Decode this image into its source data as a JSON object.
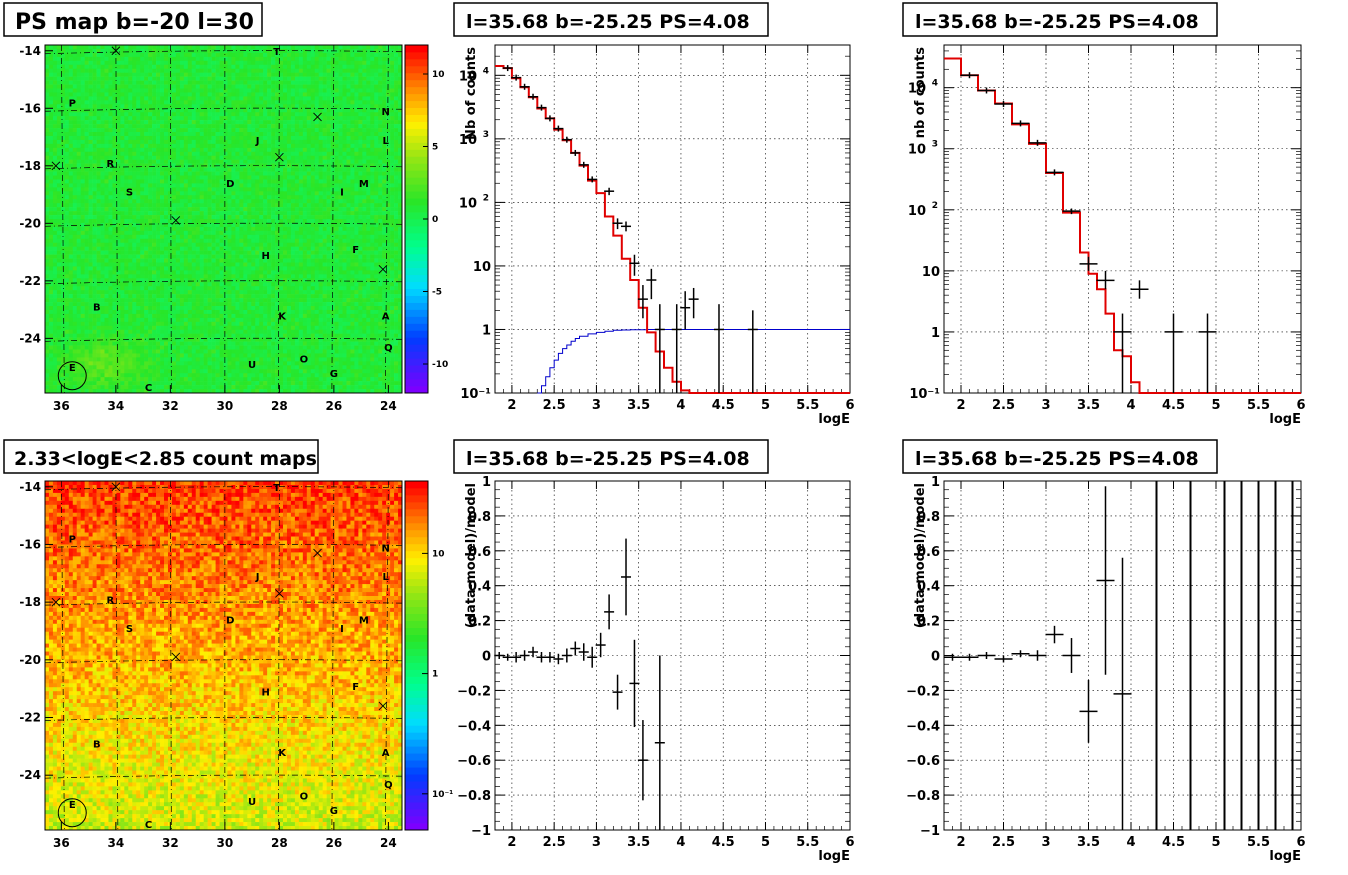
{
  "panels": {
    "map1": {
      "title": "PS map b=-20 l=30",
      "x_ticks": [
        "36",
        "34",
        "32",
        "30",
        "28",
        "26",
        "24"
      ],
      "y_ticks": [
        "-14",
        "-16",
        "-18",
        "-20",
        "-22",
        "-24"
      ],
      "colorbar_ticks": [
        "10",
        "5",
        "0",
        "-5",
        "-10"
      ],
      "palette": "rainbow, green field"
    },
    "map2": {
      "title": "2.33<logE<2.85 count maps",
      "x_ticks": [
        "36",
        "34",
        "32",
        "30",
        "28",
        "26",
        "24"
      ],
      "y_ticks": [
        "-14",
        "-16",
        "-18",
        "-20",
        "-22",
        "-24"
      ],
      "colorbar_ticks": [
        "10",
        "1",
        "10⁻¹"
      ],
      "palette": "rainbow log, orange-red field"
    },
    "map_labels": [
      {
        "t": "T",
        "l": 28.1,
        "b": -14.0
      },
      {
        "t": "P",
        "l": 35.6,
        "b": -15.8
      },
      {
        "t": "N",
        "l": 24.1,
        "b": -16.1
      },
      {
        "t": "J",
        "l": 28.8,
        "b": -17.1
      },
      {
        "t": "L",
        "l": 24.1,
        "b": -17.1
      },
      {
        "t": "R",
        "l": 34.2,
        "b": -17.9
      },
      {
        "t": "S",
        "l": 33.5,
        "b": -18.9
      },
      {
        "t": "D",
        "l": 29.8,
        "b": -18.6
      },
      {
        "t": "M",
        "l": 24.9,
        "b": -18.6
      },
      {
        "t": "I",
        "l": 25.7,
        "b": -18.9
      },
      {
        "t": "H",
        "l": 28.5,
        "b": -21.1
      },
      {
        "t": "F",
        "l": 25.2,
        "b": -20.9
      },
      {
        "t": "B",
        "l": 34.7,
        "b": -22.9
      },
      {
        "t": "K",
        "l": 27.9,
        "b": -23.2
      },
      {
        "t": "A",
        "l": 24.1,
        "b": -23.2
      },
      {
        "t": "Q",
        "l": 24.0,
        "b": -24.3
      },
      {
        "t": "O",
        "l": 27.1,
        "b": -24.7
      },
      {
        "t": "U",
        "l": 29.0,
        "b": -24.9
      },
      {
        "t": "G",
        "l": 26.0,
        "b": -25.2
      },
      {
        "t": "E",
        "l": 35.6,
        "b": -25.0
      },
      {
        "t": "C",
        "l": 32.8,
        "b": -25.7
      }
    ],
    "map_crosses": [
      {
        "l": 34.0,
        "b": -14.0
      },
      {
        "l": 26.6,
        "b": -16.3
      },
      {
        "l": 28.0,
        "b": -17.7
      },
      {
        "l": 31.8,
        "b": -19.9
      },
      {
        "l": 24.2,
        "b": -21.6
      },
      {
        "l": 36.2,
        "b": -18.0
      }
    ],
    "circle": {
      "l": 35.6,
      "b": -25.3
    },
    "spec1": {
      "title": "l=35.68 b=-25.25 PS=4.08",
      "xlabel": "logE",
      "ylabel": "Nb of counts"
    },
    "spec2": {
      "title": "l=35.68 b=-25.25 PS=4.08",
      "xlabel": "logE",
      "ylabel": "nb of counts"
    },
    "res1": {
      "title": "l=35.68 b=-25.25 PS=4.08",
      "xlabel": "logE",
      "ylabel": "(data-model)/model"
    },
    "res2": {
      "title": "l=35.68 b=-25.25 PS=4.08",
      "xlabel": "logE",
      "ylabel": "(data-model)/model"
    }
  },
  "chart_data": [
    {
      "type": "heatmap",
      "title": "PS map b=-20 l=30",
      "xlim": [
        36.6,
        23.5
      ],
      "ylim": [
        -25.9,
        -13.8
      ],
      "z_range": [
        -12,
        12
      ],
      "note_values": "smooth field near 0 (green), slight positive blobs"
    },
    {
      "type": "line",
      "title": "l=35.68 b=-25.25 PS=4.08",
      "xlabel": "logE",
      "ylabel": "Nb of counts",
      "xlim": [
        1.8,
        6
      ],
      "ylim": [
        0.1,
        30000
      ],
      "yscale": "log",
      "model_step": {
        "edges": [
          1.8,
          1.9,
          2.0,
          2.1,
          2.2,
          2.3,
          2.4,
          2.5,
          2.6,
          2.7,
          2.8,
          2.9,
          3.0,
          3.1,
          3.2,
          3.3,
          3.4,
          3.5,
          3.6,
          3.7,
          3.8,
          3.9,
          4.0,
          4.1,
          4.2,
          4.3,
          4.4,
          4.5,
          6.0
        ],
        "values": [
          14000,
          13000,
          9000,
          6500,
          4500,
          3000,
          2100,
          1400,
          950,
          600,
          380,
          220,
          140,
          60,
          30,
          13,
          6,
          2.2,
          0.9,
          0.45,
          0.25,
          0.15,
          0.11,
          0.1,
          0.1,
          0.1,
          0.1,
          0.1
        ]
      },
      "data_points": [
        {
          "x": 1.95,
          "y": 13000
        },
        {
          "x": 2.05,
          "y": 9200
        },
        {
          "x": 2.15,
          "y": 6600
        },
        {
          "x": 2.25,
          "y": 4600
        },
        {
          "x": 2.35,
          "y": 3100
        },
        {
          "x": 2.45,
          "y": 2100
        },
        {
          "x": 2.55,
          "y": 1450
        },
        {
          "x": 2.65,
          "y": 970
        },
        {
          "x": 2.75,
          "y": 600
        },
        {
          "x": 2.85,
          "y": 390
        },
        {
          "x": 2.95,
          "y": 230
        },
        {
          "x": 3.15,
          "y": 150,
          "lo": 130,
          "hi": 170
        },
        {
          "x": 3.25,
          "y": 47,
          "lo": 38,
          "hi": 56
        },
        {
          "x": 3.35,
          "y": 42,
          "lo": 35,
          "hi": 50
        },
        {
          "x": 3.45,
          "y": 11,
          "lo": 7,
          "hi": 15
        },
        {
          "x": 3.55,
          "y": 3,
          "lo": 1.5,
          "hi": 5
        },
        {
          "x": 3.65,
          "y": 6,
          "lo": 3,
          "hi": 9
        },
        {
          "x": 3.75,
          "y": 1,
          "lo": 0.1,
          "hi": 2.5
        },
        {
          "x": 3.95,
          "y": 1,
          "lo": 0.1,
          "hi": 2.5
        },
        {
          "x": 4.05,
          "y": 2.2,
          "lo": 1,
          "hi": 4
        },
        {
          "x": 4.15,
          "y": 3,
          "lo": 1.5,
          "hi": 4.5
        },
        {
          "x": 4.45,
          "y": 1,
          "lo": 0.1,
          "hi": 2.5
        },
        {
          "x": 4.85,
          "y": 1,
          "lo": 0.1,
          "hi": 2
        }
      ],
      "blue_curve": {
        "x": [
          2.3,
          2.35,
          2.4,
          2.45,
          2.5,
          2.55,
          2.6,
          2.65,
          2.7,
          2.75,
          2.8,
          2.9,
          3.0,
          3.1,
          3.2,
          3.3,
          3.4,
          3.6,
          4.0,
          6.0
        ],
        "y": [
          0.1,
          0.13,
          0.18,
          0.25,
          0.33,
          0.42,
          0.5,
          0.57,
          0.65,
          0.72,
          0.78,
          0.85,
          0.9,
          0.94,
          0.97,
          0.98,
          0.99,
          1,
          1,
          1
        ]
      }
    },
    {
      "type": "line",
      "title": "l=35.68 b=-25.25 PS=4.08",
      "xlabel": "logE",
      "ylabel": "nb of counts",
      "xlim": [
        1.8,
        6
      ],
      "ylim": [
        0.1,
        50000
      ],
      "yscale": "log",
      "model_step": {
        "edges": [
          1.8,
          2.0,
          2.2,
          2.4,
          2.6,
          2.8,
          3.0,
          3.2,
          3.4,
          3.5,
          3.6,
          3.7,
          3.8,
          3.9,
          4.0,
          4.1,
          4.2,
          4.3,
          6.0
        ],
        "values": [
          30000,
          16000,
          9000,
          5500,
          2500,
          1200,
          400,
          90,
          20,
          9,
          5,
          2,
          0.5,
          0.4,
          0.15,
          0.1,
          0.1,
          0.1
        ]
      },
      "data_points": [
        {
          "x": 2.1,
          "y": 16000
        },
        {
          "x": 2.3,
          "y": 9000
        },
        {
          "x": 2.5,
          "y": 5400
        },
        {
          "x": 2.7,
          "y": 2600
        },
        {
          "x": 2.9,
          "y": 1250
        },
        {
          "x": 3.1,
          "y": 410
        },
        {
          "x": 3.3,
          "y": 95,
          "lo": 85,
          "hi": 105
        },
        {
          "x": 3.5,
          "y": 13,
          "lo": 10,
          "hi": 17
        },
        {
          "x": 3.7,
          "y": 7,
          "lo": 5,
          "hi": 10
        },
        {
          "x": 3.9,
          "y": 1,
          "lo": 0.1,
          "hi": 2
        },
        {
          "x": 4.1,
          "y": 5,
          "lo": 3.5,
          "hi": 7
        },
        {
          "x": 4.5,
          "y": 1,
          "lo": 0.1,
          "hi": 2
        },
        {
          "x": 4.9,
          "y": 1,
          "lo": 0.1,
          "hi": 2
        }
      ]
    },
    {
      "type": "heatmap",
      "title": "2.33<logE<2.85 count maps",
      "xlim": [
        36.6,
        23.5
      ],
      "ylim": [
        -25.9,
        -13.8
      ],
      "z_range": [
        0.05,
        40
      ],
      "zscale": "log",
      "note_values": "noisy counts ~2-20, higher at top"
    },
    {
      "type": "scatter",
      "title": "l=35.68 b=-25.25 PS=4.08",
      "xlabel": "logE",
      "ylabel": "(data-model)/model",
      "xlim": [
        1.8,
        6
      ],
      "ylim": [
        -1,
        1
      ],
      "points": [
        {
          "x": 1.85,
          "y": 0.0,
          "e": 0.02
        },
        {
          "x": 1.95,
          "y": -0.01,
          "e": 0.02
        },
        {
          "x": 2.05,
          "y": -0.01,
          "e": 0.03
        },
        {
          "x": 2.15,
          "y": 0.0,
          "e": 0.03
        },
        {
          "x": 2.25,
          "y": 0.02,
          "e": 0.03
        },
        {
          "x": 2.35,
          "y": -0.01,
          "e": 0.03
        },
        {
          "x": 2.45,
          "y": -0.01,
          "e": 0.03
        },
        {
          "x": 2.55,
          "y": -0.02,
          "e": 0.03
        },
        {
          "x": 2.65,
          "y": 0.0,
          "e": 0.04
        },
        {
          "x": 2.75,
          "y": 0.04,
          "e": 0.04
        },
        {
          "x": 2.85,
          "y": 0.02,
          "e": 0.05
        },
        {
          "x": 2.95,
          "y": -0.01,
          "e": 0.06
        },
        {
          "x": 3.05,
          "y": 0.06,
          "e": 0.07
        },
        {
          "x": 3.15,
          "y": 0.25,
          "e": 0.1
        },
        {
          "x": 3.25,
          "y": -0.21,
          "e": 0.1
        },
        {
          "x": 3.35,
          "y": 0.45,
          "e": 0.22
        },
        {
          "x": 3.45,
          "y": -0.16,
          "e": 0.25
        },
        {
          "x": 3.55,
          "y": -0.6,
          "e": 0.23
        },
        {
          "x": 3.75,
          "y": -0.5,
          "e": 0.5
        }
      ]
    },
    {
      "type": "scatter",
      "title": "l=35.68 b=-25.25 PS=4.08",
      "xlabel": "logE",
      "ylabel": "(data-model)/model",
      "xlim": [
        1.8,
        6
      ],
      "ylim": [
        -1,
        1
      ],
      "points": [
        {
          "x": 1.9,
          "y": -0.01,
          "e": 0.02
        },
        {
          "x": 2.1,
          "y": -0.01,
          "e": 0.02
        },
        {
          "x": 2.3,
          "y": 0.0,
          "e": 0.02
        },
        {
          "x": 2.5,
          "y": -0.02,
          "e": 0.02
        },
        {
          "x": 2.7,
          "y": 0.01,
          "e": 0.02
        },
        {
          "x": 2.9,
          "y": 0.0,
          "e": 0.03
        },
        {
          "x": 3.1,
          "y": 0.12,
          "e": 0.05
        },
        {
          "x": 3.3,
          "y": 0.0,
          "e": 0.1
        },
        {
          "x": 3.5,
          "y": -0.32,
          "e": 0.18
        },
        {
          "x": 3.7,
          "y": 0.43,
          "e": 0.54
        },
        {
          "x": 3.9,
          "y": -0.22,
          "e": 0.78
        }
      ],
      "vertical_bars_x": [
        4.3,
        4.7,
        5.1,
        5.3,
        5.5,
        5.7,
        5.9
      ]
    }
  ]
}
